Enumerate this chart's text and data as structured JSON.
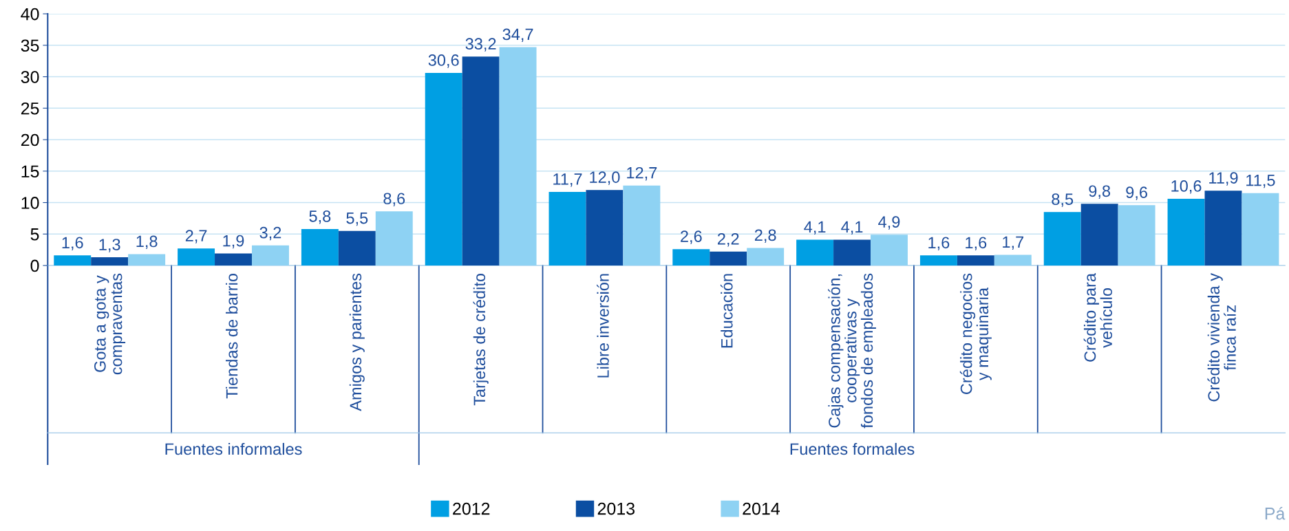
{
  "chart_data": {
    "type": "bar",
    "categories": [
      "Gota a gota y\ncompraventas",
      "Tiendas de barrio",
      "Amigos y parientes",
      "Tarjetas de crédito",
      "Libre inversión",
      "Educación",
      "Cajas compensación,\ncooperativas y\nfondos de empleados",
      "Crédito negocios\ny maquinaria",
      "Crédito para\nvehículo",
      "Crédito vivienda y\nfinca raíz"
    ],
    "series": [
      {
        "name": "2012",
        "color": "#009fe3",
        "values": [
          1.6,
          2.7,
          5.8,
          30.6,
          11.7,
          2.6,
          4.1,
          1.6,
          8.5,
          10.6
        ],
        "value_labels": [
          "1,6",
          "2,7",
          "5,8",
          "30,6",
          "11,7",
          "2,6",
          "4,1",
          "1,6",
          "8,5",
          "10,6"
        ]
      },
      {
        "name": "2013",
        "color": "#0b4ea2",
        "values": [
          1.3,
          1.9,
          5.5,
          33.2,
          12.0,
          2.2,
          4.1,
          1.6,
          9.8,
          11.9
        ],
        "value_labels": [
          "1,3",
          "1,9",
          "5,5",
          "33,2",
          "12,0",
          "2,2",
          "4,1",
          "1,6",
          "9,8",
          "11,9"
        ]
      },
      {
        "name": "2014",
        "color": "#8ed2f3",
        "values": [
          1.8,
          3.2,
          8.6,
          34.7,
          12.7,
          2.8,
          4.9,
          1.7,
          9.6,
          11.5
        ],
        "value_labels": [
          "1,8",
          "3,2",
          "8,6",
          "34,7",
          "12,7",
          "2,8",
          "4,9",
          "1,7",
          "9,6",
          "11,5"
        ]
      }
    ],
    "ylim": [
      0,
      40
    ],
    "yticks": [
      0,
      5,
      10,
      15,
      20,
      25,
      30,
      35,
      40
    ],
    "grid": "y",
    "legend": "bottom",
    "annotations": [
      "Fuentes informales",
      "Fuentes formales",
      "Pá"
    ]
  }
}
